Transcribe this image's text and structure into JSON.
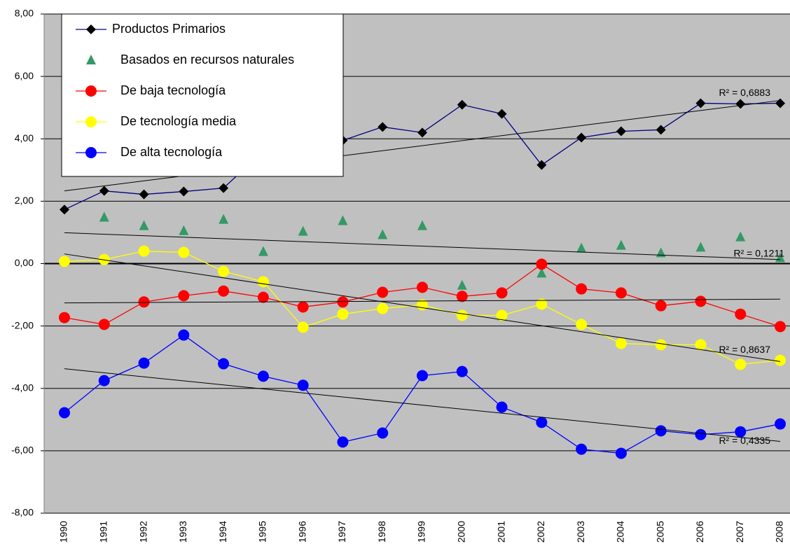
{
  "chart_data": {
    "type": "line",
    "categories": [
      "1990",
      "1991",
      "1992",
      "1993",
      "1994",
      "1995",
      "1996",
      "1997",
      "1998",
      "1999",
      "2000",
      "2001",
      "2002",
      "2003",
      "2004",
      "2005",
      "2006",
      "2007",
      "2008"
    ],
    "ylim": [
      -8,
      8
    ],
    "yticks": [
      {
        "value": -8,
        "label": "-8,00"
      },
      {
        "value": -6,
        "label": "-6,00"
      },
      {
        "value": -4,
        "label": "-4,00"
      },
      {
        "value": -2,
        "label": "-2,00"
      },
      {
        "value": 0,
        "label": "0,00"
      },
      {
        "value": 2,
        "label": "2,00"
      },
      {
        "value": 4,
        "label": "4,00"
      },
      {
        "value": 6,
        "label": "6,00"
      },
      {
        "value": 8,
        "label": "8,00"
      }
    ],
    "grid": true,
    "legend": "upper left",
    "series": [
      {
        "name": "Productos Primarios",
        "color": "#000000",
        "line_color": "#000080",
        "marker": "diamond",
        "line": true,
        "values": [
          1.73,
          2.33,
          2.22,
          2.31,
          2.42,
          3.6,
          3.9,
          3.95,
          4.38,
          4.2,
          5.09,
          4.8,
          3.16,
          4.04,
          4.24,
          4.29,
          5.14,
          5.12,
          5.14
        ],
        "trend": {
          "start": 2.33,
          "end": 5.23,
          "label": "R² = 0,6883"
        }
      },
      {
        "name": "Basados en recursos naturales",
        "color": "#339966",
        "marker": "triangle",
        "line": false,
        "values": [
          0.07,
          1.48,
          1.21,
          1.05,
          1.41,
          0.38,
          1.03,
          1.37,
          0.92,
          1.21,
          -0.7,
          -1.68,
          -0.31,
          0.49,
          0.58,
          0.34,
          0.52,
          0.85,
          0.18
        ],
        "trend": {
          "start": 0.99,
          "end": 0.13,
          "label": "R² = 0,1211"
        }
      },
      {
        "name": "De baja tecnología",
        "color": "#ff0000",
        "marker": "circle",
        "line": true,
        "values": [
          -1.73,
          -1.95,
          -1.23,
          -1.03,
          -0.88,
          -1.08,
          -1.39,
          -1.23,
          -0.92,
          -0.76,
          -1.05,
          -0.94,
          -0.02,
          -0.81,
          -0.94,
          -1.35,
          -1.21,
          -1.62,
          -2.02
        ],
        "trend": {
          "start": -1.26,
          "end": -1.14
        }
      },
      {
        "name": "De tecnología media",
        "color": "#ffff00",
        "marker": "circle",
        "line": true,
        "values": [
          0.07,
          0.13,
          0.4,
          0.36,
          -0.25,
          -0.58,
          -2.04,
          -1.62,
          -1.44,
          -1.32,
          -1.66,
          -1.66,
          -1.3,
          -1.95,
          -2.56,
          -2.6,
          -2.6,
          -3.23,
          -3.1
        ],
        "trend": {
          "start": 0.31,
          "end": -3.14,
          "label": "R² = 0,8637"
        }
      },
      {
        "name": "De alta tecnología",
        "color": "#0000ff",
        "marker": "circle",
        "line": true,
        "values": [
          -4.78,
          -3.75,
          -3.19,
          -2.29,
          -3.21,
          -3.61,
          -3.9,
          -5.72,
          -5.43,
          -3.59,
          -3.46,
          -4.6,
          -5.09,
          -5.95,
          -6.08,
          -5.36,
          -5.48,
          -5.39,
          -5.14
        ],
        "trend": {
          "start": -3.37,
          "end": -5.7,
          "label": "R² = 0,4335"
        }
      }
    ]
  }
}
